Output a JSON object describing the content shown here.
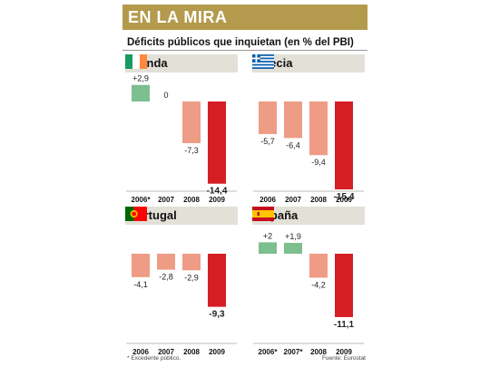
{
  "header": {
    "title": "EN LA MIRA"
  },
  "subtitle": "Déficits públicos que inquietan (en % del PBI)",
  "footnote": "* Excedente público.",
  "source": "Fuente: Eurostat",
  "colors": {
    "header": "#b39a4c",
    "tab": "#e3e0d8",
    "surplus": "#7dbf8e",
    "deficit": "#ee9c85",
    "latest": "#d51f25"
  },
  "chart_data": [
    {
      "type": "bar",
      "title": "Irlanda",
      "flag": "ireland-flag",
      "categories": [
        "2006*",
        "2007",
        "2008",
        "2009"
      ],
      "values": [
        2.9,
        0,
        -7.3,
        -14.4
      ],
      "value_labels": [
        "+2,9",
        "0",
        "-7,3",
        "-14,4"
      ],
      "ylim": [
        -16,
        4
      ]
    },
    {
      "type": "bar",
      "title": "Grecia",
      "flag": "greece-flag",
      "categories": [
        "2006",
        "2007",
        "2008",
        "2009"
      ],
      "values": [
        -5.7,
        -6.4,
        -9.4,
        -15.4
      ],
      "value_labels": [
        "-5,7",
        "-6,4",
        "-9,4",
        "-15,4"
      ],
      "ylim": [
        -16,
        4
      ]
    },
    {
      "type": "bar",
      "title": "Portugal",
      "flag": "portugal-flag",
      "categories": [
        "2006",
        "2007",
        "2008",
        "2009"
      ],
      "values": [
        -4.1,
        -2.8,
        -2.9,
        -9.3
      ],
      "value_labels": [
        "-4,1",
        "-2,8",
        "-2,9",
        "-9,3"
      ],
      "ylim": [
        -16,
        4
      ]
    },
    {
      "type": "bar",
      "title": "España",
      "flag": "spain-flag",
      "categories": [
        "2006*",
        "2007*",
        "2008",
        "2009"
      ],
      "values": [
        2,
        1.9,
        -4.2,
        -11.1
      ],
      "value_labels": [
        "+2",
        "+1,9",
        "-4,2",
        "-11,1"
      ],
      "ylim": [
        -16,
        4
      ]
    }
  ]
}
